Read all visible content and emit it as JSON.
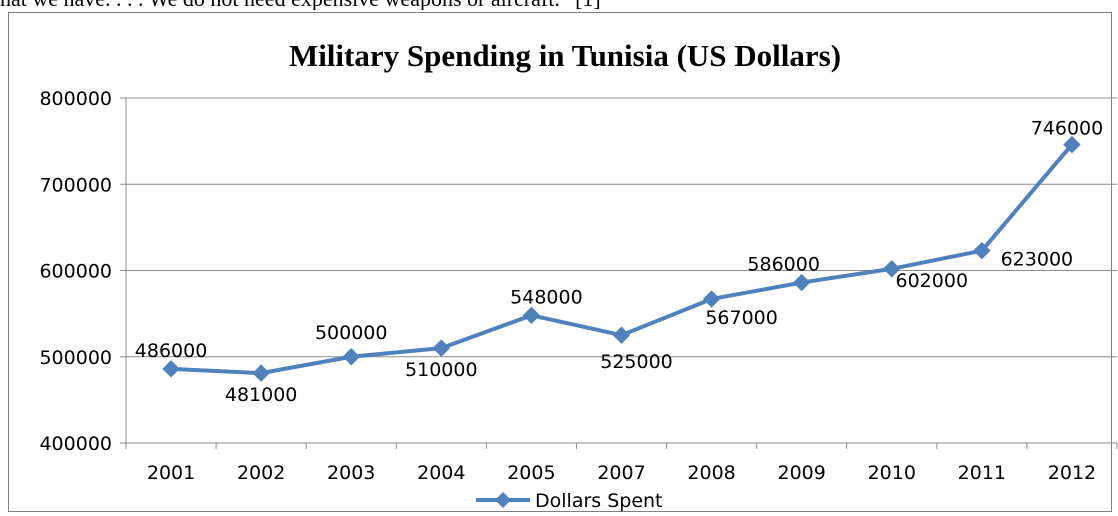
{
  "document": {
    "text_above": "hat we have. . . . We do not need expensive weapons or aircraft.” [1]"
  },
  "chart_data": {
    "type": "line",
    "title": "Military Spending in Tunisia (US Dollars)",
    "xlabel": "",
    "ylabel": "",
    "categories": [
      "2001",
      "2002",
      "2003",
      "2004",
      "2005",
      "2007",
      "2008",
      "2009",
      "2010",
      "2011",
      "2012"
    ],
    "series": [
      {
        "name": "Dollars Spent",
        "values": [
          486000,
          481000,
          500000,
          510000,
          548000,
          525000,
          567000,
          586000,
          602000,
          623000,
          746000
        ],
        "color": "#4f81bd"
      }
    ],
    "ylim": [
      400000,
      800000
    ],
    "yticks": [
      "400000",
      "500000",
      "600000",
      "700000",
      "800000"
    ],
    "grid": "horizontal",
    "legend_position": "bottom",
    "marker": "diamond"
  }
}
